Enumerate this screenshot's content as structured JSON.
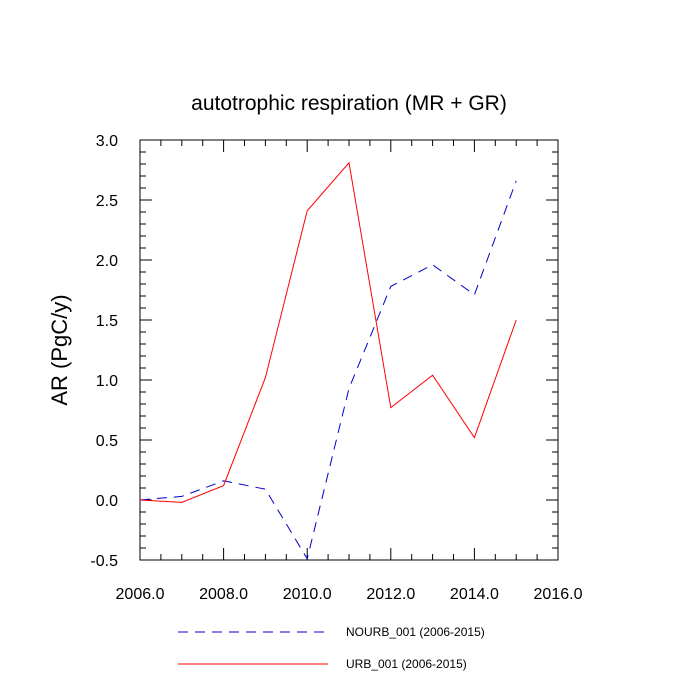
{
  "chart_data": {
    "type": "line",
    "title": "autotrophic respiration (MR + GR)",
    "xlabel": "",
    "ylabel": "AR  (PgC/y)",
    "xlim": [
      2006,
      2016
    ],
    "ylim": [
      -0.5,
      3.0
    ],
    "xticks": [
      2006,
      2008,
      2010,
      2012,
      2014,
      2016
    ],
    "xtick_labels": [
      "2006.0",
      "2008.0",
      "2010.0",
      "2012.0",
      "2014.0",
      "2016.0"
    ],
    "yticks": [
      -0.5,
      0,
      0.5,
      1.0,
      1.5,
      2.0,
      2.5,
      3.0
    ],
    "ytick_labels": [
      "-0.5",
      "0.0",
      "0.5",
      "1.0",
      "1.5",
      "2.0",
      "2.5",
      "3.0"
    ],
    "grid": false,
    "legend_position": "bottom",
    "series": [
      {
        "name": "NOURB_001 (2006-2015)",
        "color": "#0000cc",
        "dash": "dashed",
        "x": [
          2006,
          2007,
          2008,
          2009,
          2010,
          2011,
          2012,
          2013,
          2014,
          2015
        ],
        "y": [
          0.0,
          0.03,
          0.16,
          0.09,
          -0.49,
          0.93,
          1.78,
          1.96,
          1.71,
          2.66
        ]
      },
      {
        "name": "URB_001 (2006-2015)",
        "color": "#ff0000",
        "dash": "solid",
        "x": [
          2006,
          2007,
          2008,
          2009,
          2010,
          2011,
          2012,
          2013,
          2014,
          2015
        ],
        "y": [
          0.0,
          -0.02,
          0.12,
          1.02,
          2.41,
          2.81,
          0.77,
          1.04,
          0.52,
          1.5
        ]
      }
    ]
  }
}
